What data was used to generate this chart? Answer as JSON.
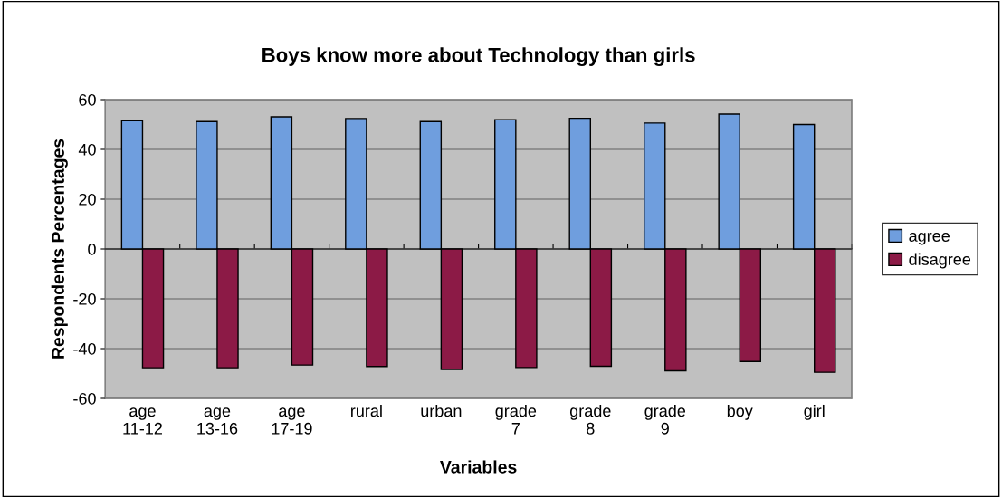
{
  "chart_data": {
    "type": "bar",
    "title": "Boys know more about Technology than girls",
    "xlabel": "Variables",
    "ylabel": "Respondents Percentages",
    "categories": [
      "age 11-12",
      "age 13-16",
      "age 17-19",
      "rural",
      "urban",
      "grade 7",
      "grade 8",
      "grade 9",
      "boy",
      "girl"
    ],
    "series": [
      {
        "name": "agree",
        "color": "#6f9ede",
        "values": [
          51.5,
          51.2,
          53.1,
          52.4,
          51.2,
          51.9,
          52.5,
          50.6,
          54.2,
          50.0
        ]
      },
      {
        "name": "disagree",
        "color": "#8c1a46",
        "values": [
          -47.7,
          -47.7,
          -46.6,
          -47.2,
          -48.4,
          -47.6,
          -47.1,
          -48.9,
          -45.2,
          -49.5
        ]
      }
    ],
    "ylim": [
      -60,
      60
    ],
    "yticks": [
      -60,
      -40,
      -20,
      0,
      20,
      40,
      60
    ],
    "grid": "y",
    "legend": "right"
  }
}
